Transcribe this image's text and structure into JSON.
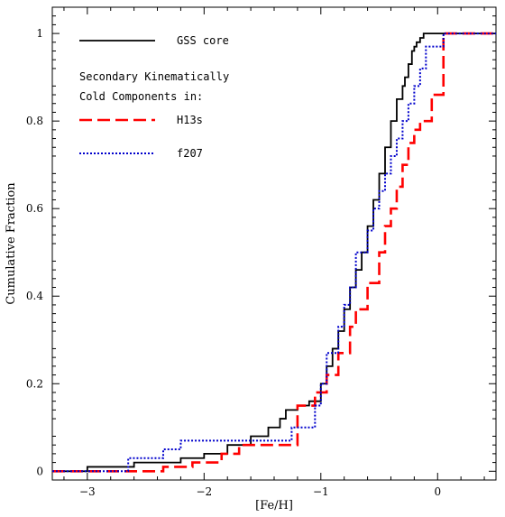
{
  "chart_data": {
    "type": "line",
    "title": "",
    "xlabel": "[Fe/H]",
    "ylabel": "Cumulative Fraction",
    "xlim": [
      -3.3,
      0.5
    ],
    "ylim": [
      -0.02,
      1.06
    ],
    "x_ticks": [
      -3,
      -2,
      -1,
      0
    ],
    "x_tick_labels": [
      "−3",
      "−2",
      "−1",
      "0"
    ],
    "y_ticks": [
      0,
      0.2,
      0.4,
      0.6,
      0.8,
      1
    ],
    "y_tick_labels": [
      "0",
      "0.2",
      "0.4",
      "0.6",
      "0.8",
      "1"
    ],
    "grid": false,
    "legend_position": "top-left",
    "legend_heading": [
      "Secondary Kinematically",
      "Cold Components in:"
    ],
    "series": [
      {
        "name": "GSS core",
        "color": "#000000",
        "style": "solid",
        "x": [
          -3.3,
          -3.0,
          -2.6,
          -2.2,
          -2.0,
          -1.8,
          -1.6,
          -1.45,
          -1.35,
          -1.3,
          -1.2,
          -1.1,
          -1.0,
          -0.95,
          -0.9,
          -0.85,
          -0.8,
          -0.75,
          -0.7,
          -0.65,
          -0.6,
          -0.55,
          -0.5,
          -0.45,
          -0.4,
          -0.35,
          -0.3,
          -0.28,
          -0.25,
          -0.22,
          -0.2,
          -0.18,
          -0.15,
          -0.12,
          -0.1,
          -0.05,
          0.0,
          0.5
        ],
        "y": [
          0.0,
          0.01,
          0.02,
          0.03,
          0.04,
          0.06,
          0.08,
          0.1,
          0.12,
          0.14,
          0.15,
          0.16,
          0.2,
          0.24,
          0.28,
          0.32,
          0.37,
          0.42,
          0.46,
          0.5,
          0.56,
          0.62,
          0.68,
          0.74,
          0.8,
          0.85,
          0.88,
          0.9,
          0.93,
          0.96,
          0.97,
          0.98,
          0.99,
          1.0,
          1.0,
          1.0,
          1.0,
          1.0
        ]
      },
      {
        "name": "H13s",
        "color": "#ff0000",
        "style": "dashed",
        "x": [
          -3.3,
          -2.35,
          -2.1,
          -1.85,
          -1.7,
          -1.2,
          -1.05,
          -0.95,
          -0.85,
          -0.75,
          -0.7,
          -0.6,
          -0.5,
          -0.45,
          -0.4,
          -0.35,
          -0.3,
          -0.25,
          -0.2,
          -0.15,
          -0.05,
          0.05,
          0.5
        ],
        "y": [
          0.0,
          0.01,
          0.02,
          0.04,
          0.06,
          0.15,
          0.18,
          0.22,
          0.27,
          0.33,
          0.37,
          0.43,
          0.5,
          0.56,
          0.6,
          0.65,
          0.7,
          0.75,
          0.78,
          0.8,
          0.86,
          1.0,
          1.0
        ]
      },
      {
        "name": "f207",
        "color": "#0000cc",
        "style": "dotted",
        "x": [
          -3.3,
          -2.65,
          -2.35,
          -2.2,
          -1.25,
          -1.05,
          -1.0,
          -0.95,
          -0.85,
          -0.8,
          -0.75,
          -0.7,
          -0.6,
          -0.55,
          -0.5,
          -0.45,
          -0.4,
          -0.35,
          -0.3,
          -0.25,
          -0.2,
          -0.15,
          -0.1,
          0.05,
          0.5
        ],
        "y": [
          0.0,
          0.03,
          0.05,
          0.07,
          0.1,
          0.15,
          0.2,
          0.27,
          0.33,
          0.38,
          0.42,
          0.5,
          0.55,
          0.6,
          0.64,
          0.68,
          0.72,
          0.76,
          0.8,
          0.84,
          0.88,
          0.92,
          0.97,
          1.0,
          1.0
        ]
      }
    ]
  }
}
